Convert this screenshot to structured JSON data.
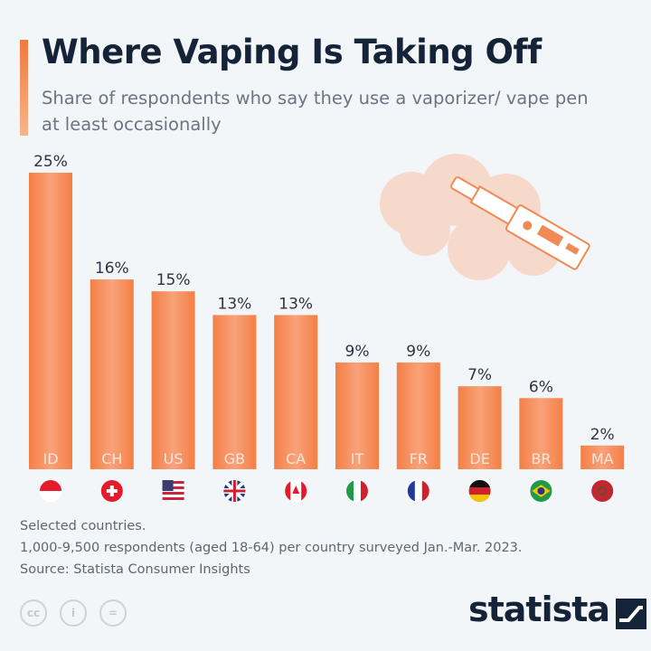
{
  "header": {
    "title": "Where Vaping Is Taking Off",
    "subtitle": "Share of respondents who say they use a vaporizer/ vape pen at least occasionally"
  },
  "chart_data": {
    "type": "bar",
    "categories": [
      "ID",
      "CH",
      "US",
      "GB",
      "CA",
      "IT",
      "FR",
      "DE",
      "BR",
      "MA"
    ],
    "values": [
      25,
      16,
      15,
      13,
      13,
      9,
      9,
      7,
      6,
      2
    ],
    "data_labels": [
      "25%",
      "16%",
      "15%",
      "13%",
      "13%",
      "9%",
      "9%",
      "7%",
      "6%",
      "2%"
    ],
    "flags": [
      "indonesia-flag",
      "switzerland-flag",
      "usa-flag",
      "uk-flag",
      "canada-flag",
      "italy-flag",
      "france-flag",
      "germany-flag",
      "brazil-flag",
      "morocco-flag"
    ],
    "ylim": [
      0,
      25
    ],
    "grid": false,
    "bar_color": "#f5874f",
    "title": "Where Vaping Is Taking Off",
    "subtitle": "Share of respondents who say they use a vaporizer/ vape pen at least occasionally"
  },
  "footer": {
    "note": "Selected countries.",
    "survey": "1,000-9,500 respondents (aged 18-64) per country surveyed Jan.-Mar. 2023.",
    "source": "Source: Statista Consumer Insights"
  },
  "license": {
    "cc": "cc",
    "by": "i",
    "nd": "="
  },
  "brand": {
    "logo": "statista",
    "colors": {
      "navy": "#142337",
      "orange": "#f5874f"
    }
  }
}
